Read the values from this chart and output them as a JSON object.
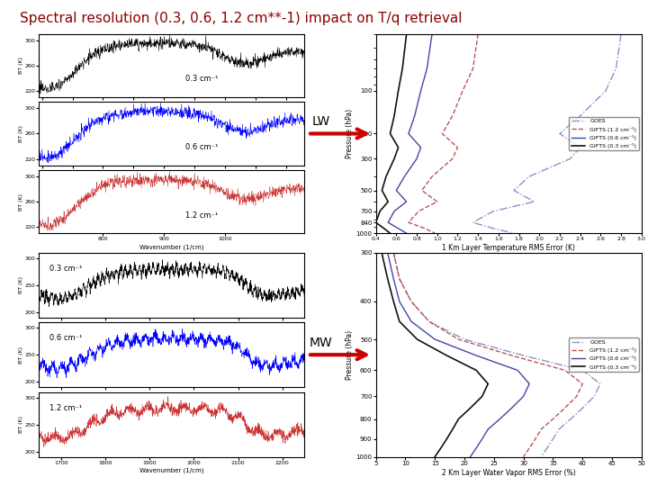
{
  "title": "Spectral resolution (0.3, 0.6, 1.2 cm**-1) impact on T/q retrieval",
  "title_color": "#8B0000",
  "title_fontsize": 11,
  "bg_color": "#FFFFFF",
  "lw_label": "LW",
  "mw_label": "MW",
  "arrow_color": "#CC0000",
  "lw_profile": {
    "xlabel": "1 Km Layer Temperature RMS Error (K)",
    "ylabel": "Pressure (hPa)",
    "xlim": [
      0.4,
      3.0
    ],
    "ylim": [
      1000,
      40
    ],
    "yticks": [
      100,
      200,
      300,
      500,
      700,
      840,
      1000
    ],
    "curves": [
      {
        "label": "GOES",
        "color": "#9090CC",
        "linestyle": "-.",
        "linewidth": 1.0
      },
      {
        "label": "GIFTS (1.2 cm⁻¹)",
        "color": "#BB5555",
        "linestyle": "--",
        "linewidth": 1.0
      },
      {
        "label": "GIFTS (0.6 cm⁻¹)",
        "color": "#4444AA",
        "linestyle": "-",
        "linewidth": 1.0
      },
      {
        "label": "GIFTS (0.3 cm⁻¹)",
        "color": "#111111",
        "linestyle": "-",
        "linewidth": 1.2
      }
    ],
    "pressure_levels": [
      40,
      70,
      100,
      150,
      200,
      250,
      300,
      400,
      500,
      600,
      700,
      840,
      925,
      1000
    ],
    "goes_x": [
      2.8,
      2.75,
      2.65,
      2.4,
      2.2,
      2.4,
      2.3,
      1.9,
      1.75,
      1.95,
      1.55,
      1.35,
      1.55,
      1.75
    ],
    "gifts12_x": [
      1.4,
      1.35,
      1.25,
      1.15,
      1.05,
      1.2,
      1.15,
      0.95,
      0.85,
      1.0,
      0.82,
      0.72,
      0.88,
      0.98
    ],
    "gifts06_x": [
      0.95,
      0.9,
      0.84,
      0.78,
      0.72,
      0.84,
      0.8,
      0.68,
      0.6,
      0.7,
      0.58,
      0.52,
      0.62,
      0.7
    ],
    "gifts03_x": [
      0.7,
      0.66,
      0.62,
      0.58,
      0.54,
      0.62,
      0.58,
      0.5,
      0.46,
      0.52,
      0.44,
      0.4,
      0.48,
      0.54
    ]
  },
  "mw_profile": {
    "xlabel": "2 Km Layer Water Vapor RMS Error (%)",
    "ylabel": "Pressure (hPa)",
    "xlim": [
      5,
      50
    ],
    "ylim": [
      1000,
      300
    ],
    "yticks": [
      300,
      400,
      500,
      600,
      700,
      800,
      900,
      1000
    ],
    "curves": [
      {
        "label": "GOES",
        "color": "#9090CC",
        "linestyle": "-.",
        "linewidth": 1.0
      },
      {
        "label": "GIFTS (1.2 cm⁻¹)",
        "color": "#BB5555",
        "linestyle": "--",
        "linewidth": 1.0
      },
      {
        "label": "GIFTS (0.6 cm⁻¹)",
        "color": "#4444AA",
        "linestyle": "-",
        "linewidth": 1.0
      },
      {
        "label": "GIFTS (0.3 cm⁻¹)",
        "color": "#111111",
        "linestyle": "-",
        "linewidth": 1.2
      }
    ],
    "pressure_levels": [
      300,
      350,
      400,
      450,
      500,
      550,
      600,
      650,
      700,
      750,
      800,
      850,
      900,
      950,
      1000
    ],
    "goes_x": [
      8,
      9,
      11,
      14,
      20,
      30,
      40,
      43,
      42,
      40,
      38,
      36,
      35,
      34,
      33
    ],
    "gifts12_x": [
      8,
      9,
      11,
      14,
      19,
      28,
      37,
      40,
      39,
      37,
      35,
      33,
      32,
      31,
      30
    ],
    "gifts06_x": [
      7,
      8,
      9,
      11,
      15,
      22,
      29,
      31,
      30,
      28,
      26,
      24,
      23,
      22,
      21
    ],
    "gifts03_x": [
      6,
      7,
      8,
      9,
      12,
      17,
      22,
      24,
      23,
      21,
      19,
      18,
      17,
      16,
      15
    ]
  }
}
